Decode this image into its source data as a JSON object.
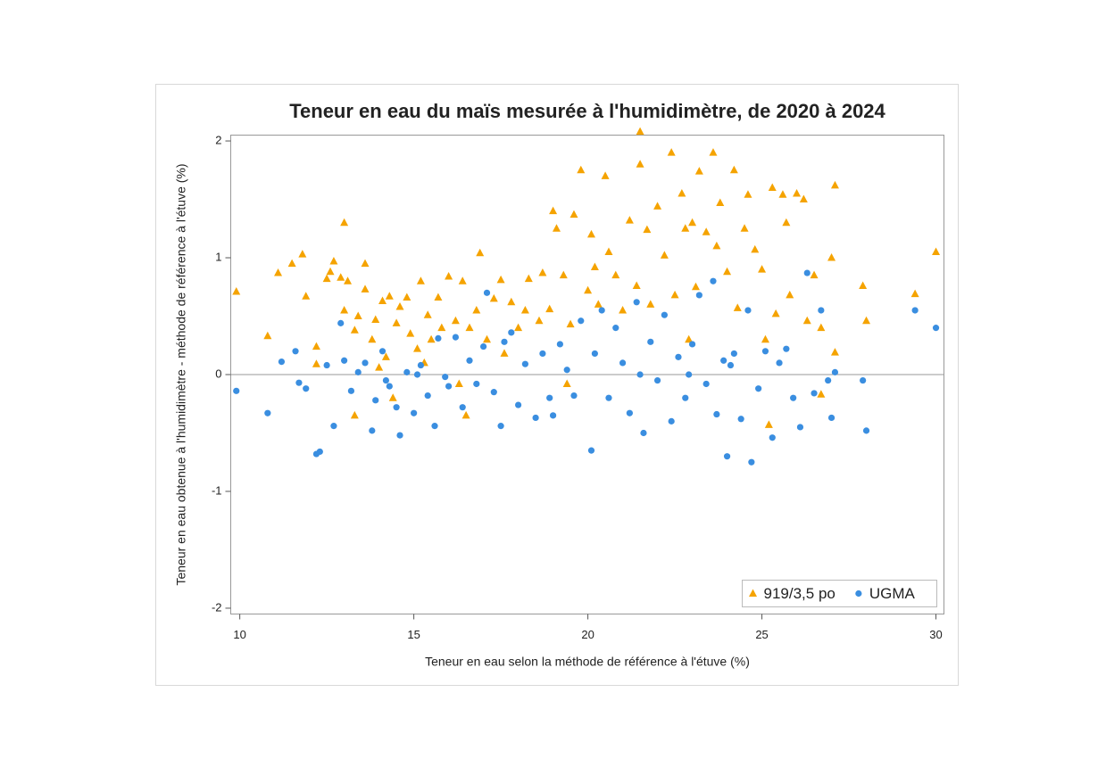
{
  "chart_data": {
    "type": "scatter",
    "title": "Teneur en eau du maïs mesurée à l'humidimètre, de 2020 à 2024",
    "xlabel": "Teneur en eau selon la méthode de référence à l'étuve (%)",
    "ylabel": "Teneur en eau obtenue à l'humidimètre - méthode de référence à l'étuve (%)",
    "xlim": [
      9.74,
      30.23
    ],
    "ylim": [
      -2.05,
      2.05
    ],
    "xticks": [
      10,
      15,
      20,
      25,
      30
    ],
    "yticks": [
      -2,
      -1,
      0,
      1,
      2
    ],
    "reference_line": 0,
    "legend": "bottom-right",
    "series": [
      {
        "name": "919/3,5 po",
        "color": "#f5a300",
        "marker": "triangle",
        "x": [
          9.9,
          10.8,
          11.1,
          11.5,
          11.8,
          11.9,
          12.2,
          12.2,
          12.5,
          12.6,
          12.7,
          12.9,
          13.0,
          13.0,
          13.1,
          13.3,
          13.3,
          13.4,
          13.6,
          13.6,
          13.8,
          13.9,
          14.1,
          14.2,
          14.3,
          14.4,
          14.5,
          14.6,
          14.8,
          14.9,
          15.1,
          15.2,
          15.4,
          15.5,
          15.7,
          15.8,
          16.0,
          16.2,
          16.4,
          16.5,
          16.6,
          16.8,
          16.9,
          17.1,
          17.3,
          17.5,
          17.6,
          17.8,
          18.0,
          18.2,
          18.3,
          18.6,
          18.7,
          18.9,
          19.0,
          19.1,
          19.3,
          19.5,
          19.6,
          19.8,
          20.0,
          20.1,
          20.2,
          20.3,
          20.5,
          20.6,
          20.8,
          21.0,
          21.2,
          21.4,
          21.5,
          21.5,
          21.7,
          21.8,
          22.0,
          22.2,
          22.4,
          22.5,
          22.7,
          22.8,
          23.0,
          23.1,
          23.2,
          23.4,
          23.6,
          23.7,
          23.8,
          24.0,
          24.2,
          24.3,
          24.5,
          24.6,
          24.8,
          25.0,
          25.1,
          25.3,
          25.4,
          25.6,
          25.7,
          25.8,
          26.0,
          26.2,
          26.3,
          26.5,
          26.7,
          26.7,
          27.0,
          27.1,
          27.1,
          27.9,
          28.0,
          29.4,
          30.0,
          25.2,
          15.3,
          14.0,
          16.3,
          19.4,
          22.9
        ],
        "values": [
          0.71,
          0.33,
          0.87,
          0.95,
          1.03,
          0.67,
          0.24,
          0.09,
          0.82,
          0.88,
          0.97,
          0.83,
          1.3,
          0.55,
          0.8,
          0.38,
          -0.35,
          0.5,
          0.95,
          0.73,
          0.3,
          0.47,
          0.63,
          0.15,
          0.67,
          -0.2,
          0.44,
          0.58,
          0.66,
          0.35,
          0.22,
          0.8,
          0.51,
          0.3,
          0.66,
          0.4,
          0.84,
          0.46,
          0.8,
          -0.35,
          0.4,
          0.55,
          1.04,
          0.3,
          0.65,
          0.81,
          0.18,
          0.62,
          0.4,
          0.55,
          0.82,
          0.46,
          0.87,
          0.56,
          1.4,
          1.25,
          0.85,
          0.43,
          1.37,
          1.75,
          0.72,
          1.2,
          0.92,
          0.6,
          1.7,
          1.05,
          0.85,
          0.55,
          1.32,
          0.76,
          1.8,
          2.08,
          1.24,
          0.6,
          1.44,
          1.02,
          1.9,
          0.68,
          1.55,
          1.25,
          1.3,
          0.75,
          1.74,
          1.22,
          1.9,
          1.1,
          1.47,
          0.88,
          1.75,
          0.57,
          1.25,
          1.54,
          1.07,
          0.9,
          0.3,
          1.6,
          0.52,
          1.54,
          1.3,
          0.68,
          1.55,
          1.5,
          0.46,
          0.85,
          0.4,
          -0.17,
          1.0,
          1.62,
          0.19,
          0.76,
          0.46,
          0.69,
          1.05,
          -0.43,
          0.1,
          0.06,
          -0.08,
          -0.08,
          0.3
        ]
      },
      {
        "name": "UGMA",
        "color": "#3a8ee0",
        "marker": "circle",
        "x": [
          9.9,
          10.8,
          11.2,
          11.6,
          11.7,
          11.9,
          12.2,
          12.3,
          12.5,
          12.7,
          12.9,
          13.0,
          13.2,
          13.4,
          13.6,
          13.8,
          13.9,
          14.1,
          14.3,
          14.5,
          14.6,
          14.8,
          15.0,
          15.2,
          15.4,
          15.6,
          15.7,
          15.9,
          16.2,
          16.4,
          16.6,
          16.8,
          17.0,
          17.1,
          17.3,
          17.5,
          17.8,
          18.0,
          18.2,
          18.5,
          18.7,
          18.9,
          19.2,
          19.4,
          19.6,
          19.8,
          20.1,
          20.2,
          20.4,
          20.6,
          20.8,
          21.0,
          21.2,
          21.4,
          21.6,
          21.8,
          22.0,
          22.2,
          22.4,
          22.6,
          22.8,
          23.0,
          23.2,
          23.4,
          23.6,
          23.7,
          23.9,
          24.0,
          24.2,
          24.4,
          24.6,
          24.7,
          24.9,
          25.1,
          25.3,
          25.5,
          25.7,
          25.9,
          26.1,
          26.3,
          26.5,
          26.7,
          26.9,
          27.0,
          27.1,
          27.9,
          28.0,
          29.4,
          30.0,
          14.2,
          15.1,
          16.0,
          17.6,
          19.0,
          21.5,
          22.9,
          24.1
        ],
        "values": [
          -0.14,
          -0.33,
          0.11,
          0.2,
          -0.07,
          -0.12,
          -0.68,
          -0.66,
          0.08,
          -0.44,
          0.44,
          0.12,
          -0.14,
          0.02,
          0.1,
          -0.48,
          -0.22,
          0.2,
          -0.1,
          -0.28,
          -0.52,
          0.02,
          -0.33,
          0.08,
          -0.18,
          -0.44,
          0.31,
          -0.02,
          0.32,
          -0.28,
          0.12,
          -0.08,
          0.24,
          0.7,
          -0.15,
          -0.44,
          0.36,
          -0.26,
          0.09,
          -0.37,
          0.18,
          -0.2,
          0.26,
          0.04,
          -0.18,
          0.46,
          -0.65,
          0.18,
          0.55,
          -0.2,
          0.4,
          0.1,
          -0.33,
          0.62,
          -0.5,
          0.28,
          -0.05,
          0.51,
          -0.4,
          0.15,
          -0.2,
          0.26,
          0.68,
          -0.08,
          0.8,
          -0.34,
          0.12,
          -0.7,
          0.18,
          -0.38,
          0.55,
          -0.75,
          -0.12,
          0.2,
          -0.54,
          0.1,
          0.22,
          -0.2,
          -0.45,
          0.87,
          -0.16,
          0.55,
          -0.05,
          -0.37,
          0.02,
          -0.05,
          -0.48,
          0.55,
          0.4,
          -0.05,
          0.0,
          -0.1,
          0.28,
          -0.35,
          0.0,
          0.0,
          0.08
        ]
      }
    ]
  }
}
